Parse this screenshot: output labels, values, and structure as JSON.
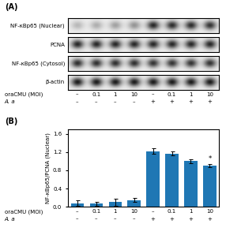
{
  "chart_data": [
    {
      "type": "heatmap",
      "title": "(A)",
      "rows": [
        "NF-κBp65 (Nuclear)",
        "PCNA",
        "NF-κBp65 (Cytosol)",
        "β-actin"
      ],
      "categories": [
        "–",
        "0.1",
        "1",
        "10",
        "–",
        "0.1",
        "1",
        "10"
      ],
      "xlabel": "oraCMU (MOI)",
      "groups": {
        "label": "A. a",
        "values": [
          "–",
          "–",
          "–",
          "–",
          "+",
          "+",
          "+",
          "+"
        ]
      },
      "cells": [
        [
          0.72,
          0.68,
          0.63,
          0.58,
          0.15,
          0.17,
          0.17,
          0.2
        ],
        [
          0.15,
          0.15,
          0.15,
          0.15,
          0.15,
          0.15,
          0.15,
          0.15
        ],
        [
          0.18,
          0.18,
          0.18,
          0.18,
          0.2,
          0.2,
          0.2,
          0.2
        ],
        [
          0.1,
          0.1,
          0.1,
          0.1,
          0.1,
          0.1,
          0.1,
          0.1
        ]
      ],
      "background": 0.93,
      "zlim": [
        0,
        1
      ]
    },
    {
      "type": "bar",
      "title": "(B)",
      "categories": [
        "–",
        "0.1",
        "1",
        "10",
        "–",
        "0.1",
        "1",
        "10"
      ],
      "xlabel": "oraCMU (MOI)",
      "groups": {
        "label": "A. a",
        "values": [
          "–",
          "–",
          "–",
          "–",
          "+",
          "+",
          "+",
          "+"
        ]
      },
      "values": [
        0.08,
        0.07,
        0.1,
        0.15,
        1.22,
        1.17,
        1.0,
        0.9
      ],
      "errors": [
        0.06,
        0.04,
        0.07,
        0.05,
        0.06,
        0.05,
        0.05,
        0.04
      ],
      "ylabel": "NF-κBp65/PCNA (Nuclear)",
      "ylim": [
        0,
        1.7
      ],
      "yticks": [
        0.0,
        0.4,
        0.8,
        1.2,
        1.6
      ],
      "annotations": [
        {
          "text": "*",
          "index": 7
        }
      ]
    }
  ]
}
